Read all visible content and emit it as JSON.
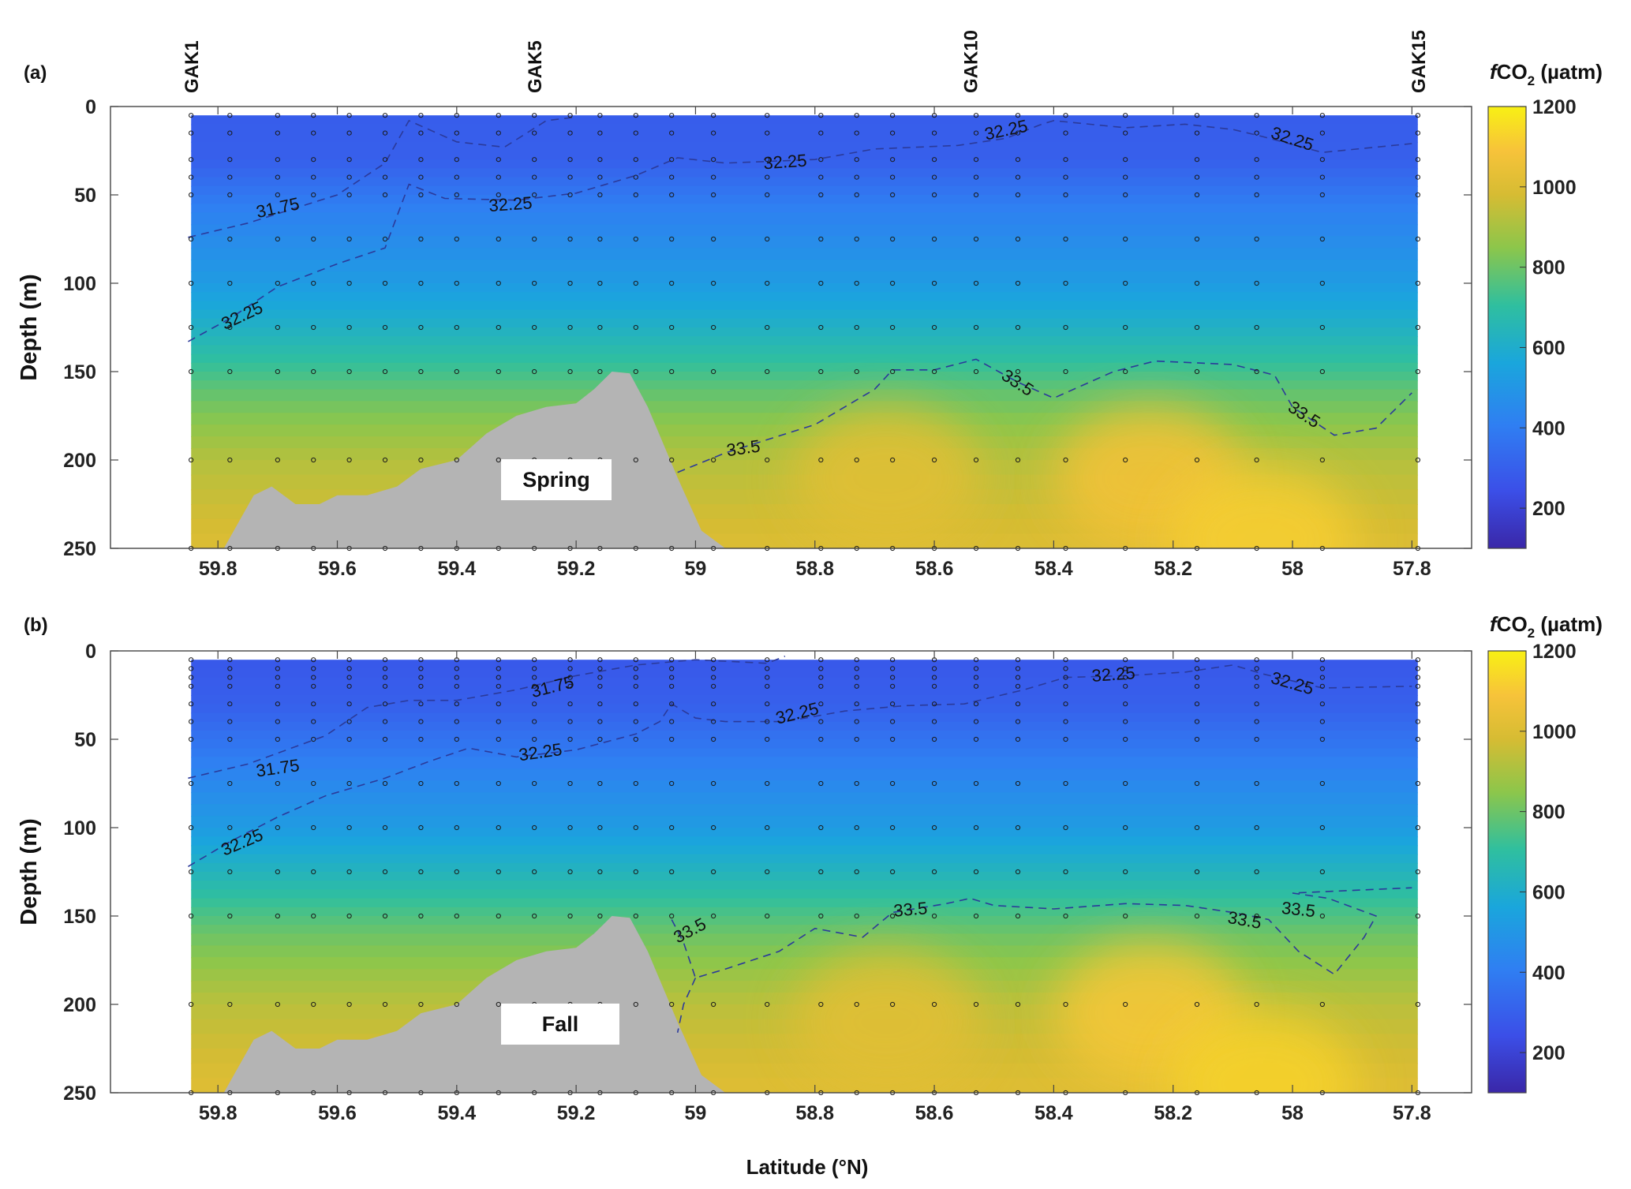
{
  "chart_data": [
    {
      "type": "heatmap",
      "panel_label": "(a)",
      "season_label": "Spring",
      "xlabel": "",
      "ylabel": "Depth (m)",
      "xlim": [
        59.98,
        57.7
      ],
      "ylim": [
        0,
        250
      ],
      "x_ticks": [
        59.8,
        59.6,
        59.4,
        59.2,
        59,
        58.8,
        58.6,
        58.4,
        58.2,
        58,
        57.8
      ],
      "x_tick_labels": [
        "59.8",
        "59.6",
        "59.4",
        "59.2",
        "59",
        "58.8",
        "58.6",
        "58.4",
        "58.2",
        "58",
        "57.8"
      ],
      "y_ticks": [
        0,
        50,
        100,
        150,
        200,
        250
      ],
      "y_tick_labels": [
        "0",
        "50",
        "100",
        "150",
        "200",
        "250"
      ],
      "stations": [
        {
          "name": "GAK1",
          "lat": 59.845
        },
        {
          "name": "GAK5",
          "lat": 59.27
        },
        {
          "name": "GAK10",
          "lat": 58.54
        },
        {
          "name": "GAK15",
          "lat": 57.79
        }
      ],
      "colorbar": {
        "label_prefix": "f",
        "label_main": "CO",
        "label_sub": "2",
        "label_unit": " (µatm)",
        "range": [
          100,
          1200
        ],
        "ticks": [
          200,
          400,
          600,
          800,
          1000,
          1200
        ],
        "tick_labels": [
          "200",
          "400",
          "600",
          "800",
          "1000",
          "1200"
        ]
      },
      "fco2_profile": [
        {
          "depth": 0,
          "fco2": 290
        },
        {
          "depth": 30,
          "fco2": 300
        },
        {
          "depth": 60,
          "fco2": 420
        },
        {
          "depth": 100,
          "fco2": 520
        },
        {
          "depth": 130,
          "fco2": 640
        },
        {
          "depth": 160,
          "fco2": 780
        },
        {
          "depth": 200,
          "fco2": 920
        },
        {
          "depth": 250,
          "fco2": 1000
        }
      ],
      "high_fco2_regions": [
        {
          "lat": 58.68,
          "depth": 210,
          "fco2": 1020
        },
        {
          "lat": 58.24,
          "depth": 210,
          "fco2": 1080
        },
        {
          "lat": 58.05,
          "depth": 245,
          "fco2": 1120
        }
      ],
      "bathymetry": [
        [
          59.85,
          250
        ],
        [
          59.79,
          250
        ],
        [
          59.74,
          220
        ],
        [
          59.71,
          215
        ],
        [
          59.67,
          225
        ],
        [
          59.63,
          225
        ],
        [
          59.6,
          220
        ],
        [
          59.55,
          220
        ],
        [
          59.5,
          215
        ],
        [
          59.46,
          205
        ],
        [
          59.4,
          200
        ],
        [
          59.35,
          185
        ],
        [
          59.3,
          175
        ],
        [
          59.25,
          170
        ],
        [
          59.2,
          168
        ],
        [
          59.17,
          160
        ],
        [
          59.14,
          150
        ],
        [
          59.11,
          151
        ],
        [
          59.08,
          170
        ],
        [
          59.03,
          210
        ],
        [
          58.99,
          240
        ],
        [
          58.95,
          250
        ]
      ],
      "contours": [
        {
          "level": "31.75",
          "points": [
            [
              59.85,
              74
            ],
            [
              59.75,
              66
            ],
            [
              59.6,
              50
            ],
            [
              59.52,
              32
            ],
            [
              59.48,
              8
            ],
            [
              59.4,
              20
            ],
            [
              59.32,
              23
            ],
            [
              59.25,
              8
            ],
            [
              59.2,
              6
            ]
          ]
        },
        {
          "level": "32.25",
          "points": [
            [
              59.85,
              133
            ],
            [
              59.78,
              120
            ],
            [
              59.7,
              102
            ],
            [
              59.6,
              89
            ],
            [
              59.52,
              80
            ],
            [
              59.48,
              44
            ],
            [
              59.42,
              52
            ],
            [
              59.3,
              53
            ],
            [
              59.2,
              49
            ],
            [
              59.1,
              39
            ],
            [
              59.03,
              29
            ],
            [
              58.95,
              32
            ],
            [
              58.8,
              30
            ],
            [
              58.7,
              24
            ],
            [
              58.56,
              22
            ],
            [
              58.48,
              18
            ],
            [
              58.42,
              10
            ],
            [
              58.4,
              8
            ],
            [
              58.28,
              12
            ],
            [
              58.18,
              10
            ],
            [
              58.1,
              13
            ],
            [
              58.05,
              17
            ],
            [
              57.95,
              26
            ],
            [
              57.8,
              21
            ]
          ]
        },
        {
          "level": "33.5",
          "points": [
            [
              59.03,
              207
            ],
            [
              58.95,
              196
            ],
            [
              58.8,
              180
            ],
            [
              58.7,
              160
            ],
            [
              58.67,
              149
            ],
            [
              58.6,
              149
            ],
            [
              58.53,
              143
            ],
            [
              58.46,
              156
            ],
            [
              58.4,
              165
            ],
            [
              58.3,
              150
            ],
            [
              58.23,
              144
            ],
            [
              58.1,
              146
            ],
            [
              58.03,
              152
            ],
            [
              58.0,
              170
            ],
            [
              57.93,
              186
            ],
            [
              57.86,
              182
            ],
            [
              57.8,
              162
            ]
          ]
        }
      ],
      "contour_labels": [
        {
          "text": "31.75",
          "lat": 59.7,
          "depth": 57,
          "angle": -12
        },
        {
          "text": "32.25",
          "lat": 59.31,
          "depth": 55,
          "angle": -4
        },
        {
          "text": "32.25",
          "lat": 58.85,
          "depth": 31,
          "angle": -4
        },
        {
          "text": "32.25",
          "lat": 58.48,
          "depth": 13,
          "angle": -12
        },
        {
          "text": "32.25",
          "lat": 58.0,
          "depth": 18,
          "angle": 18
        },
        {
          "text": "32.25",
          "lat": 59.76,
          "depth": 118,
          "angle": -25
        },
        {
          "text": "33.5",
          "lat": 58.92,
          "depth": 193,
          "angle": -8
        },
        {
          "text": "33.5",
          "lat": 58.46,
          "depth": 156,
          "angle": 33
        },
        {
          "text": "33.5",
          "lat": 57.98,
          "depth": 174,
          "angle": 33
        }
      ],
      "sampling_points": {
        "lats": [
          59.845,
          59.78,
          59.7,
          59.64,
          59.58,
          59.52,
          59.46,
          59.4,
          59.33,
          59.27,
          59.21,
          59.16,
          59.1,
          59.04,
          58.97,
          58.88,
          58.79,
          58.73,
          58.67,
          58.6,
          58.53,
          58.46,
          58.38,
          58.28,
          58.16,
          58.06,
          57.95,
          57.79
        ],
        "depths": [
          5,
          15,
          30,
          40,
          50,
          75,
          100,
          125,
          150,
          200,
          250
        ]
      }
    },
    {
      "type": "heatmap",
      "panel_label": "(b)",
      "season_label": "Fall",
      "xlabel": "Latitude (°N)",
      "ylabel": "Depth (m)",
      "xlim": [
        59.98,
        57.7
      ],
      "ylim": [
        0,
        250
      ],
      "x_ticks": [
        59.8,
        59.6,
        59.4,
        59.2,
        59,
        58.8,
        58.6,
        58.4,
        58.2,
        58,
        57.8
      ],
      "x_tick_labels": [
        "59.8",
        "59.6",
        "59.4",
        "59.2",
        "59",
        "58.8",
        "58.6",
        "58.4",
        "58.2",
        "58",
        "57.8"
      ],
      "y_ticks": [
        0,
        50,
        100,
        150,
        200,
        250
      ],
      "y_tick_labels": [
        "0",
        "50",
        "100",
        "150",
        "200",
        "250"
      ],
      "colorbar": {
        "label_prefix": "f",
        "label_main": "CO",
        "label_sub": "2",
        "label_unit": " (µatm)",
        "range": [
          100,
          1200
        ],
        "ticks": [
          200,
          400,
          600,
          800,
          1000,
          1200
        ],
        "tick_labels": [
          "200",
          "400",
          "600",
          "800",
          "1000",
          "1200"
        ]
      },
      "fco2_profile": [
        {
          "depth": 0,
          "fco2": 270
        },
        {
          "depth": 30,
          "fco2": 300
        },
        {
          "depth": 60,
          "fco2": 400
        },
        {
          "depth": 100,
          "fco2": 520
        },
        {
          "depth": 130,
          "fco2": 660
        },
        {
          "depth": 160,
          "fco2": 800
        },
        {
          "depth": 200,
          "fco2": 930
        },
        {
          "depth": 250,
          "fco2": 1010
        }
      ],
      "high_fco2_regions": [
        {
          "lat": 58.68,
          "depth": 210,
          "fco2": 1020
        },
        {
          "lat": 58.24,
          "depth": 205,
          "fco2": 1100
        },
        {
          "lat": 58.05,
          "depth": 245,
          "fco2": 1130
        }
      ],
      "bathymetry": [
        [
          59.85,
          250
        ],
        [
          59.79,
          250
        ],
        [
          59.74,
          220
        ],
        [
          59.71,
          215
        ],
        [
          59.67,
          225
        ],
        [
          59.63,
          225
        ],
        [
          59.6,
          220
        ],
        [
          59.55,
          220
        ],
        [
          59.5,
          215
        ],
        [
          59.46,
          205
        ],
        [
          59.4,
          200
        ],
        [
          59.35,
          185
        ],
        [
          59.3,
          175
        ],
        [
          59.25,
          170
        ],
        [
          59.2,
          168
        ],
        [
          59.17,
          160
        ],
        [
          59.14,
          150
        ],
        [
          59.11,
          151
        ],
        [
          59.08,
          170
        ],
        [
          59.03,
          210
        ],
        [
          58.99,
          240
        ],
        [
          58.95,
          250
        ]
      ],
      "contours": [
        {
          "level": "31.75",
          "points": [
            [
              59.85,
              72
            ],
            [
              59.75,
              64
            ],
            [
              59.62,
              48
            ],
            [
              59.55,
              32
            ],
            [
              59.48,
              28
            ],
            [
              59.4,
              28
            ],
            [
              59.3,
              22
            ],
            [
              59.2,
              14
            ],
            [
              59.1,
              8
            ],
            [
              59.0,
              5
            ],
            [
              58.88,
              7
            ],
            [
              58.85,
              3
            ]
          ]
        },
        {
          "level": "32.25",
          "points": [
            [
              59.85,
              122
            ],
            [
              59.78,
              108
            ],
            [
              59.7,
              94
            ],
            [
              59.62,
              82
            ],
            [
              59.52,
              72
            ],
            [
              59.45,
              63
            ],
            [
              59.38,
              55
            ],
            [
              59.3,
              60
            ],
            [
              59.2,
              56
            ],
            [
              59.1,
              47
            ],
            [
              59.06,
              40
            ],
            [
              59.04,
              30
            ],
            [
              59.0,
              38
            ],
            [
              58.95,
              40
            ],
            [
              58.85,
              40
            ],
            [
              58.75,
              34
            ],
            [
              58.65,
              31
            ],
            [
              58.55,
              30
            ],
            [
              58.45,
              22
            ],
            [
              58.38,
              15
            ],
            [
              58.28,
              14
            ],
            [
              58.18,
              12
            ],
            [
              58.1,
              8
            ],
            [
              58.05,
              13
            ],
            [
              57.95,
              21
            ],
            [
              57.8,
              20
            ]
          ]
        },
        {
          "level": "33.5",
          "points": [
            [
              59.04,
              152
            ],
            [
              59.02,
              165
            ],
            [
              59.0,
              185
            ],
            [
              58.95,
              180
            ],
            [
              58.86,
              170
            ],
            [
              58.8,
              157
            ],
            [
              58.72,
              162
            ],
            [
              58.67,
              148
            ],
            [
              58.58,
              143
            ],
            [
              58.54,
              140
            ],
            [
              58.5,
              144
            ],
            [
              58.4,
              146
            ],
            [
              58.28,
              143
            ],
            [
              58.18,
              144
            ],
            [
              58.1,
              148
            ],
            [
              58.04,
              152
            ],
            [
              57.99,
              170
            ],
            [
              57.93,
              183
            ],
            [
              57.88,
              162
            ],
            [
              57.86,
              150
            ],
            [
              57.94,
              140
            ],
            [
              58.0,
              137
            ],
            [
              57.8,
              134
            ]
          ]
        },
        {
          "level": "33.5",
          "points": [
            [
              59.0,
              185
            ],
            [
              59.02,
              200
            ],
            [
              59.03,
              216
            ]
          ]
        }
      ],
      "contour_labels": [
        {
          "text": "31.75",
          "lat": 59.7,
          "depth": 66,
          "angle": -8
        },
        {
          "text": "31.75",
          "lat": 59.24,
          "depth": 20,
          "angle": -14
        },
        {
          "text": "32.25",
          "lat": 59.26,
          "depth": 57,
          "angle": -8
        },
        {
          "text": "32.25",
          "lat": 58.83,
          "depth": 35,
          "angle": -14
        },
        {
          "text": "32.25",
          "lat": 58.3,
          "depth": 13,
          "angle": -4
        },
        {
          "text": "32.25",
          "lat": 58.0,
          "depth": 18,
          "angle": 16
        },
        {
          "text": "32.25",
          "lat": 59.76,
          "depth": 108,
          "angle": -23
        },
        {
          "text": "33.5",
          "lat": 59.01,
          "depth": 158,
          "angle": -28
        },
        {
          "text": "33.5",
          "lat": 58.64,
          "depth": 146,
          "angle": -5
        },
        {
          "text": "33.5",
          "lat": 58.08,
          "depth": 152,
          "angle": 10
        },
        {
          "text": "33.5",
          "lat": 57.99,
          "depth": 146,
          "angle": 6
        }
      ],
      "sampling_points": {
        "lats": [
          59.845,
          59.78,
          59.7,
          59.64,
          59.58,
          59.52,
          59.46,
          59.4,
          59.33,
          59.27,
          59.21,
          59.16,
          59.1,
          59.04,
          58.97,
          58.88,
          58.79,
          58.73,
          58.67,
          58.6,
          58.53,
          58.46,
          58.38,
          58.28,
          58.16,
          58.06,
          57.95,
          57.79
        ],
        "depths": [
          5,
          10,
          15,
          20,
          30,
          40,
          50,
          75,
          100,
          125,
          150,
          200,
          250
        ]
      }
    }
  ]
}
